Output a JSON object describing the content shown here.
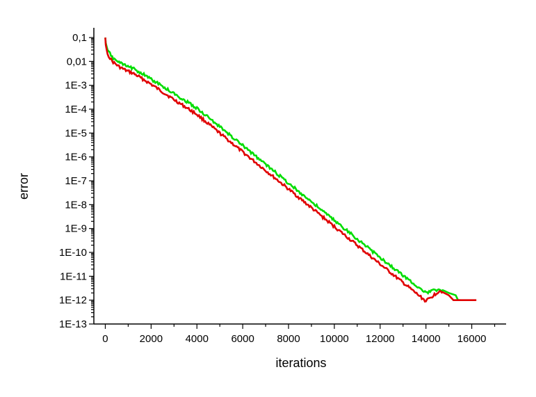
{
  "chart_data": {
    "type": "line",
    "title": "",
    "xlabel": "iterations",
    "ylabel": "error",
    "xlim": [
      -500,
      17500
    ],
    "xticks": [
      0,
      2000,
      4000,
      6000,
      8000,
      10000,
      12000,
      14000,
      16000
    ],
    "xtick_labels": [
      "0",
      "2000",
      "4000",
      "6000",
      "8000",
      "10000",
      "12000",
      "14000",
      "16000"
    ],
    "yscale": "log",
    "ylim": [
      1e-13,
      0.1
    ],
    "yticks": [
      0.1,
      0.01,
      0.001,
      0.0001,
      1e-05,
      1e-06,
      1e-07,
      1e-08,
      1e-09,
      1e-10,
      1e-11,
      1e-12,
      1e-13
    ],
    "ytick_labels": [
      "0,1",
      "0,01",
      "1E-3",
      "1E-4",
      "1E-5",
      "1E-6",
      "1E-7",
      "1E-8",
      "1E-9",
      "1E-10",
      "1E-11",
      "1E-12",
      "1E-13"
    ],
    "grid": false,
    "series": [
      {
        "color": "#e00000",
        "points": [
          [
            0,
            0.1
          ],
          [
            20,
            0.05
          ],
          [
            100,
            0.02
          ],
          [
            300,
            0.01
          ],
          [
            600,
            0.006
          ],
          [
            900,
            0.0042
          ],
          [
            1200,
            0.0032
          ],
          [
            1500,
            0.0022
          ],
          [
            2000,
            0.0011
          ],
          [
            3000,
            0.00025
          ],
          [
            4000,
            6e-05
          ],
          [
            6000,
            1.6e-06
          ],
          [
            8000,
            4.5e-08
          ],
          [
            10000,
            1.2e-09
          ],
          [
            12000,
            3.2e-11
          ],
          [
            14000,
            9e-13
          ],
          [
            14600,
            2.5e-12
          ],
          [
            15000,
            1.6e-12
          ],
          [
            15200,
            1e-12
          ],
          [
            15500,
            1e-12
          ],
          [
            16200,
            1e-12
          ]
        ]
      },
      {
        "color": "#00dd00",
        "points": [
          [
            0,
            0.1
          ],
          [
            20,
            0.06
          ],
          [
            100,
            0.03
          ],
          [
            300,
            0.015
          ],
          [
            600,
            0.009
          ],
          [
            900,
            0.0065
          ],
          [
            1200,
            0.0052
          ],
          [
            1500,
            0.0036
          ],
          [
            2000,
            0.0018
          ],
          [
            3000,
            0.00045
          ],
          [
            4000,
            0.00011
          ],
          [
            6000,
            3e-06
          ],
          [
            8000,
            8e-08
          ],
          [
            10000,
            2.2e-09
          ],
          [
            12000,
            6e-11
          ],
          [
            14000,
            2e-12
          ],
          [
            14600,
            3e-12
          ],
          [
            15000,
            2e-12
          ],
          [
            15300,
            1.6e-12
          ],
          [
            15400,
            1e-12
          ],
          [
            15500,
            1e-12
          ]
        ]
      }
    ]
  }
}
